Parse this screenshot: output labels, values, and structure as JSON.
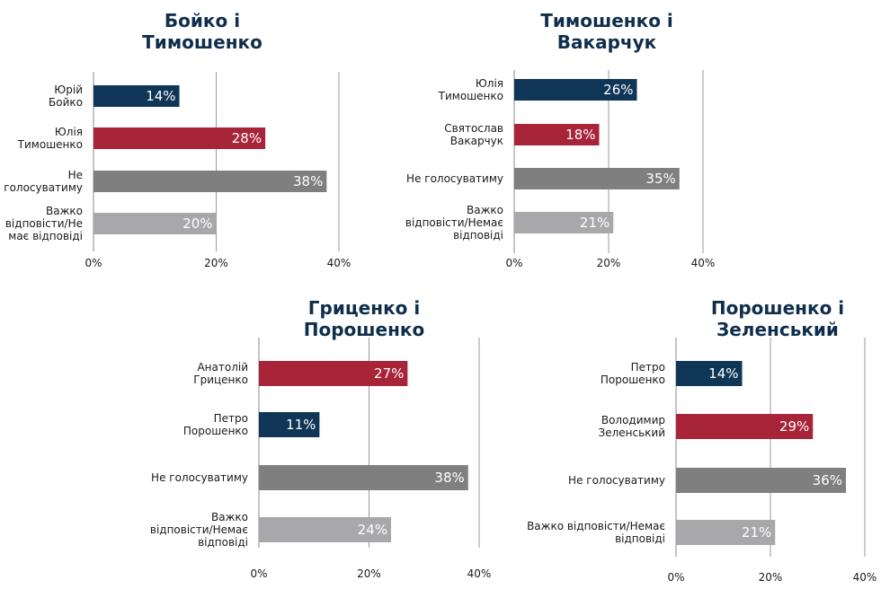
{
  "colors": {
    "navy": "#0f3557",
    "red": "#a82438",
    "dark_gray": "#7f7f7f",
    "light_gray": "#a8a8ab",
    "title": "#0f2e4c"
  },
  "chart_data": [
    {
      "type": "bar",
      "orientation": "horizontal",
      "title": [
        "Бойко і",
        "Тимошенко"
      ],
      "categories": [
        [
          "Юрій",
          "Бойко"
        ],
        [
          "Юлія",
          "Тимошенко"
        ],
        [
          "Не",
          "голосуватиму"
        ],
        [
          "Важко",
          "відповісти/Не",
          "має відповіді"
        ]
      ],
      "values": [
        14,
        28,
        38,
        20
      ],
      "value_labels": [
        "14%",
        "28%",
        "38%",
        "20%"
      ],
      "bar_colors": [
        "navy",
        "red",
        "dark_gray",
        "light_gray"
      ],
      "xlim": [
        0,
        40
      ],
      "xticks": [
        "0%",
        "20%",
        "40%"
      ],
      "grid": true
    },
    {
      "type": "bar",
      "orientation": "horizontal",
      "title": [
        "Тимошенко і",
        "Вакарчук"
      ],
      "categories": [
        [
          "Юлія",
          "Тимошенко"
        ],
        [
          "Святослав",
          "Вакарчук"
        ],
        [
          "Не голосуватиму"
        ],
        [
          "Важко",
          "відповісти/Немає",
          "відповіді"
        ]
      ],
      "values": [
        26,
        18,
        35,
        21
      ],
      "value_labels": [
        "26%",
        "18%",
        "35%",
        "21%"
      ],
      "bar_colors": [
        "navy",
        "red",
        "dark_gray",
        "light_gray"
      ],
      "xlim": [
        0,
        40
      ],
      "xticks": [
        "0%",
        "20%",
        "40%"
      ],
      "grid": true
    },
    {
      "type": "bar",
      "orientation": "horizontal",
      "title": [
        "Гриценко і",
        "Порошенко"
      ],
      "categories": [
        [
          "Анатолій",
          "Гриценко"
        ],
        [
          "Петро",
          "Порошенко"
        ],
        [
          "Не голосуватиму"
        ],
        [
          "Важко",
          "відповісти/Немає",
          "відповіді"
        ]
      ],
      "values": [
        27,
        11,
        38,
        24
      ],
      "value_labels": [
        "27%",
        "11%",
        "38%",
        "24%"
      ],
      "bar_colors": [
        "red",
        "navy",
        "dark_gray",
        "light_gray"
      ],
      "xlim": [
        0,
        40
      ],
      "xticks": [
        "0%",
        "20%",
        "40%"
      ],
      "grid": true
    },
    {
      "type": "bar",
      "orientation": "horizontal",
      "title": [
        "Порошенко і",
        "Зеленський"
      ],
      "categories": [
        [
          "Петро",
          "Порошенко"
        ],
        [
          "Володимир",
          "Зеленський"
        ],
        [
          "Не голосуватиму"
        ],
        [
          "Важко відповісти/Немає",
          "відповіді"
        ]
      ],
      "values": [
        14,
        29,
        36,
        21
      ],
      "value_labels": [
        "14%",
        "29%",
        "36%",
        "21%"
      ],
      "bar_colors": [
        "navy",
        "red",
        "dark_gray",
        "light_gray"
      ],
      "xlim": [
        0,
        40
      ],
      "xticks": [
        "0%",
        "20%",
        "40%"
      ],
      "grid": true
    }
  ]
}
